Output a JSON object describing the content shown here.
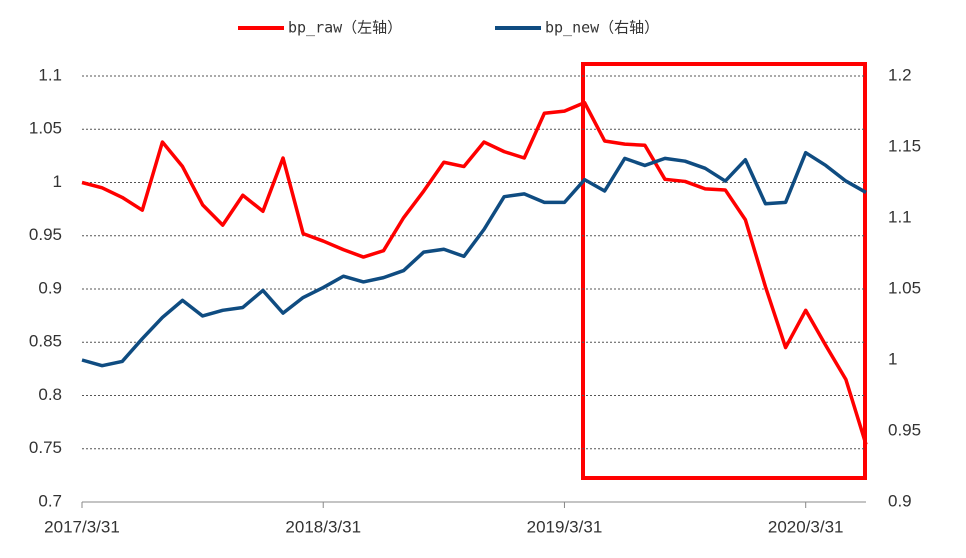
{
  "chart_data": {
    "type": "line",
    "categories": [
      "2017/3/31",
      null,
      null,
      null,
      null,
      null,
      null,
      null,
      null,
      null,
      null,
      null,
      "2018/3/31",
      null,
      null,
      null,
      null,
      null,
      null,
      null,
      null,
      null,
      null,
      null,
      "2019/3/31",
      null,
      null,
      null,
      null,
      null,
      null,
      null,
      null,
      null,
      null,
      null,
      "2020/3/31",
      null,
      null,
      null
    ],
    "series": [
      {
        "name": "bp_raw（左轴）",
        "color": "#ff0000",
        "values": [
          1.0,
          0.995,
          0.986,
          0.974,
          1.038,
          1.015,
          0.979,
          0.96,
          0.988,
          0.973,
          1.023,
          0.952,
          0.945,
          0.937,
          0.93,
          0.936,
          0.967,
          0.992,
          1.019,
          1.015,
          1.038,
          1.029,
          1.023,
          1.065,
          1.067,
          1.075,
          1.039,
          1.036,
          1.035,
          1.003,
          1.001,
          0.994,
          0.993,
          0.965,
          0.902,
          0.845,
          0.88,
          0.847,
          0.815,
          0.754
        ]
      },
      {
        "name": "bp_new（右轴）",
        "color": "#0f4c81",
        "axis": "y2",
        "values": [
          1.0,
          0.996,
          0.999,
          1.015,
          1.03,
          1.042,
          1.031,
          1.035,
          1.037,
          1.049,
          1.033,
          1.044,
          1.051,
          1.059,
          1.055,
          1.058,
          1.063,
          1.076,
          1.078,
          1.073,
          1.092,
          1.115,
          1.117,
          1.111,
          1.111,
          1.127,
          1.119,
          1.142,
          1.137,
          1.142,
          1.14,
          1.135,
          1.126,
          1.141,
          1.11,
          1.111,
          1.146,
          1.137,
          1.126,
          1.118
        ]
      }
    ],
    "ylim": [
      0.7,
      1.1
    ],
    "yticks": [
      0.7,
      0.75,
      0.8,
      0.85,
      0.9,
      0.95,
      1,
      1.05,
      1.1
    ],
    "y2lim": [
      0.9,
      1.2
    ],
    "y2ticks": [
      0.9,
      0.95,
      1,
      1.05,
      1.1,
      1.15,
      1.2
    ],
    "grid": true,
    "legend": "top"
  }
}
